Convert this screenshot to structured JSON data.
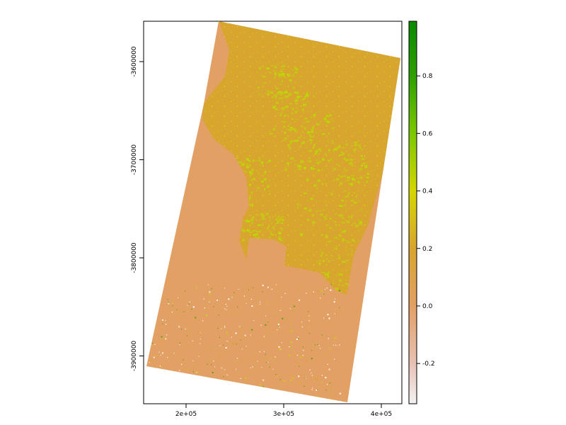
{
  "map": {
    "x_axis": {
      "ticks": [
        {
          "value": 200000,
          "label": "2e+05"
        },
        {
          "value": 300000,
          "label": "3e+05"
        },
        {
          "value": 400000,
          "label": "4e+05"
        }
      ]
    },
    "y_axis": {
      "ticks": [
        {
          "value": -3600000,
          "label": "-3600000"
        },
        {
          "value": -3700000,
          "label": "-3700000"
        },
        {
          "value": -3800000,
          "label": "-3800000"
        },
        {
          "value": -3900000,
          "label": "-3900000"
        }
      ]
    },
    "colors": {
      "water": "#e3a064",
      "land": "#d8a52f",
      "vegetation": "#c8c614",
      "dense_vegetation": "#bdd607"
    }
  },
  "legend": {
    "ticks": [
      {
        "value": 0.8,
        "label": "0.8"
      },
      {
        "value": 0.6,
        "label": "0.6"
      },
      {
        "value": 0.4,
        "label": "0.4"
      },
      {
        "value": 0.2,
        "label": "0.2"
      },
      {
        "value": 0.0,
        "label": "0.0"
      },
      {
        "value": -0.2,
        "label": "-0.2"
      }
    ],
    "stops": [
      {
        "value": -0.34,
        "color": "#f2f2f2"
      },
      {
        "value": -0.2,
        "color": "#e8c1b5"
      },
      {
        "value": 0.0,
        "color": "#e3a064"
      },
      {
        "value": 0.2,
        "color": "#d8a52f"
      },
      {
        "value": 0.4,
        "color": "#d4d600"
      },
      {
        "value": 0.6,
        "color": "#7cc800"
      },
      {
        "value": 0.8,
        "color": "#2ea000"
      },
      {
        "value": 0.99,
        "color": "#0a8a00"
      }
    ]
  }
}
